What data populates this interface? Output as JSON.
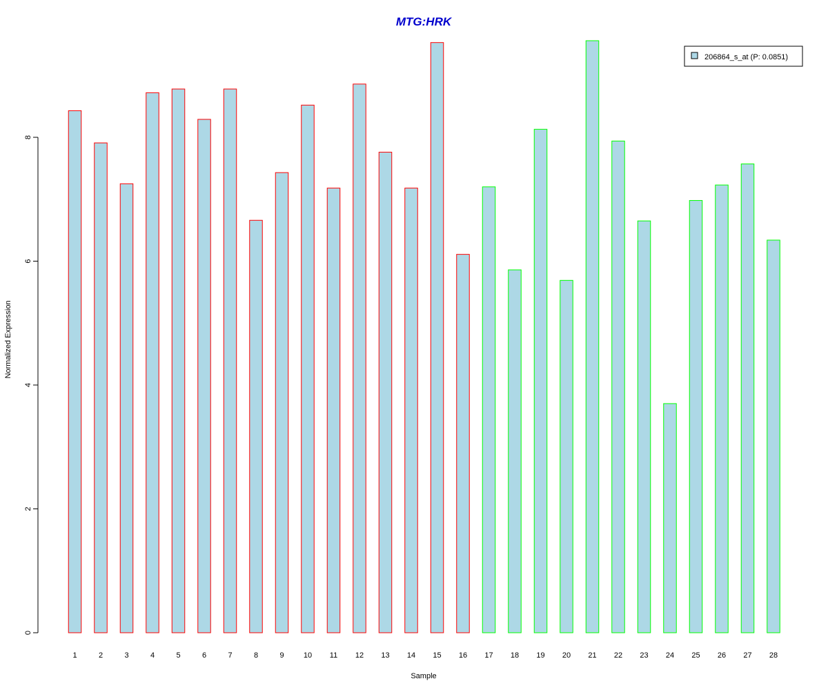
{
  "chart_data": {
    "type": "bar",
    "title": "MTG:HRK",
    "xlabel": "Sample",
    "ylabel": "Normalized Expression",
    "categories": [
      "1",
      "2",
      "3",
      "4",
      "5",
      "6",
      "7",
      "8",
      "9",
      "10",
      "11",
      "12",
      "13",
      "14",
      "15",
      "16",
      "17",
      "18",
      "19",
      "20",
      "21",
      "22",
      "23",
      "24",
      "25",
      "26",
      "27",
      "28"
    ],
    "series": [
      {
        "name": "206864_s_at (P: 0.0851)",
        "values": [
          8.43,
          7.91,
          7.25,
          8.72,
          8.78,
          8.29,
          8.78,
          6.66,
          7.43,
          8.52,
          7.18,
          8.86,
          7.76,
          7.18,
          9.53,
          6.11,
          7.2,
          5.86,
          8.13,
          5.69,
          9.56,
          7.94,
          6.65,
          3.7,
          6.98,
          7.23,
          7.57,
          6.34
        ]
      }
    ],
    "groups": [
      {
        "samples": [
          1,
          16
        ],
        "border_color": "#ff0000"
      },
      {
        "samples": [
          17,
          28
        ],
        "border_color": "#00ff00"
      }
    ],
    "bar_fill": "#add8e6",
    "title_color": "#0000cd",
    "yticks": [
      0,
      2,
      4,
      6,
      8
    ],
    "ylim": [
      0,
      9.6
    ],
    "legend_position": "top-right",
    "grid": false
  }
}
